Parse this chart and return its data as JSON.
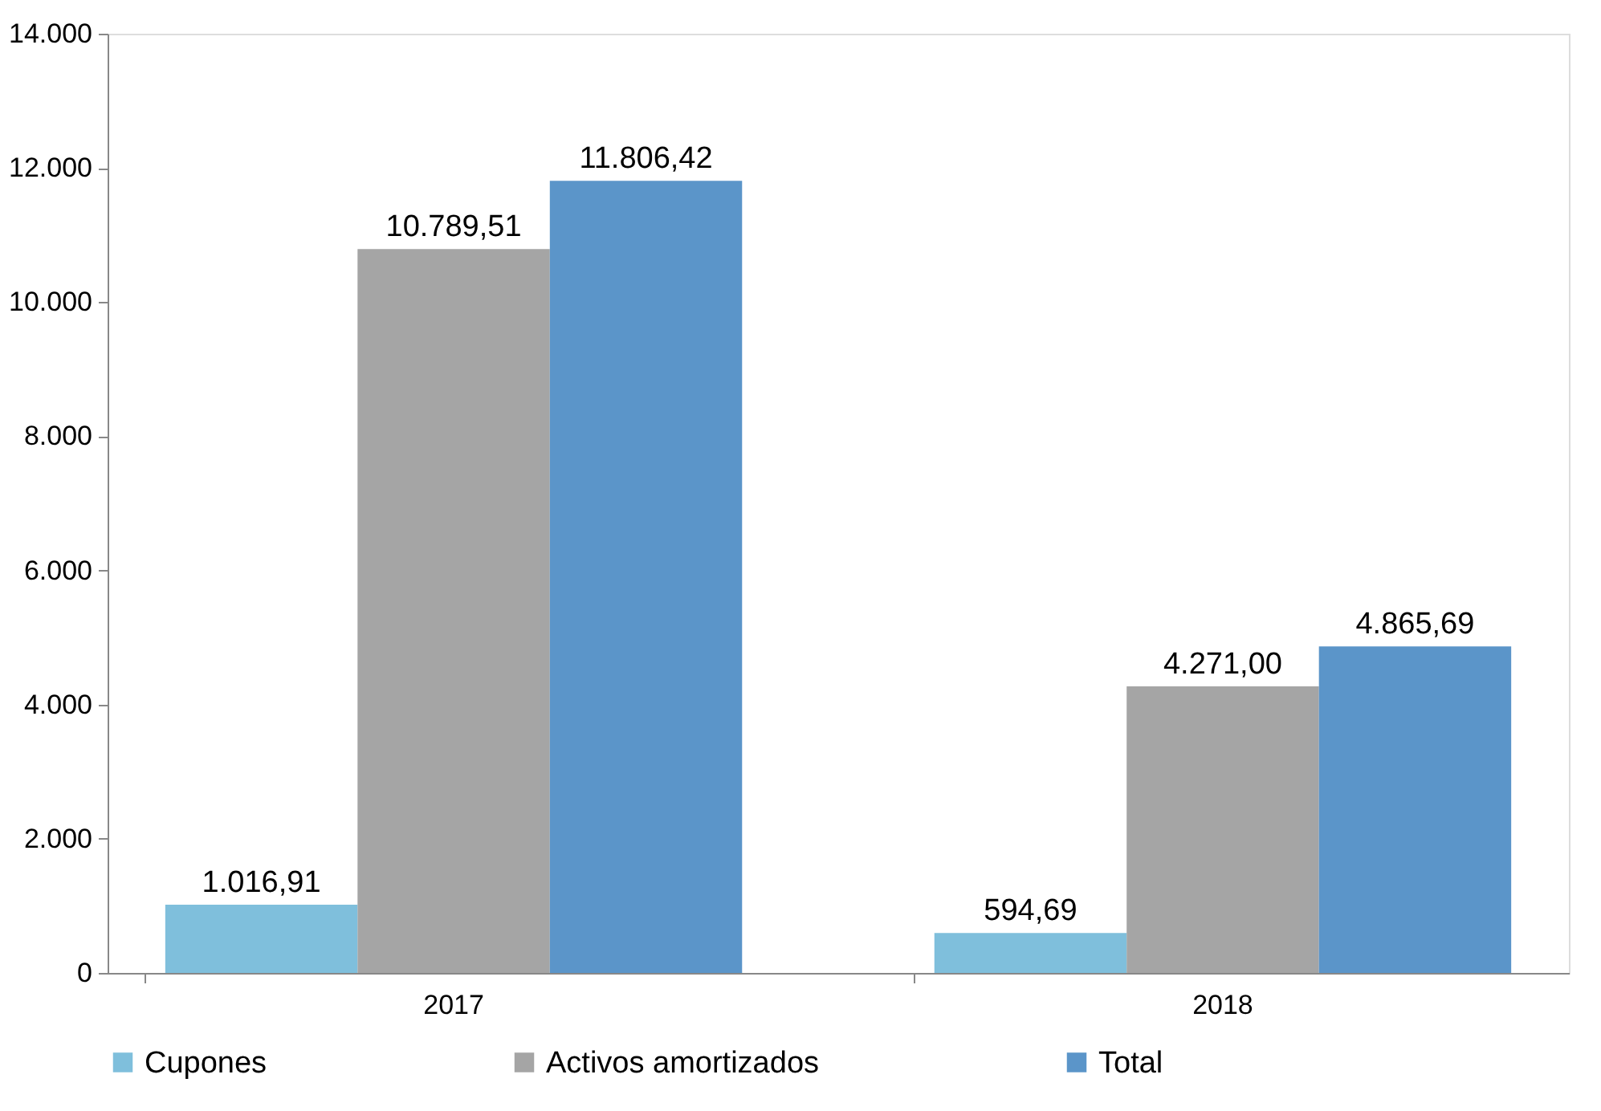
{
  "chart_data": {
    "type": "bar",
    "categories": [
      "2017",
      "2018"
    ],
    "series": [
      {
        "name": "Cupones",
        "color": "#7fbfdc",
        "values": [
          1016.91,
          594.69
        ],
        "value_labels": [
          "1.016,91",
          "594,69"
        ]
      },
      {
        "name": "Activos amortizados",
        "color": "#a5a5a5",
        "values": [
          10789.51,
          4271.0
        ],
        "value_labels": [
          "10.789,51",
          "4.271,00"
        ]
      },
      {
        "name": "Total",
        "color": "#5b95c9",
        "values": [
          11806.42,
          4865.69
        ],
        "value_labels": [
          "11.806,42",
          "4.865,69"
        ]
      }
    ],
    "ylim": [
      0,
      14000
    ],
    "yticks": [
      {
        "value": 0,
        "label": "0"
      },
      {
        "value": 2000,
        "label": "2.000"
      },
      {
        "value": 4000,
        "label": "4.000"
      },
      {
        "value": 6000,
        "label": "6.000"
      },
      {
        "value": 8000,
        "label": "8.000"
      },
      {
        "value": 10000,
        "label": "10.000"
      },
      {
        "value": 12000,
        "label": "12.000"
      },
      {
        "value": 14000,
        "label": "14.000"
      }
    ],
    "grid": false,
    "legend": "bottom"
  }
}
